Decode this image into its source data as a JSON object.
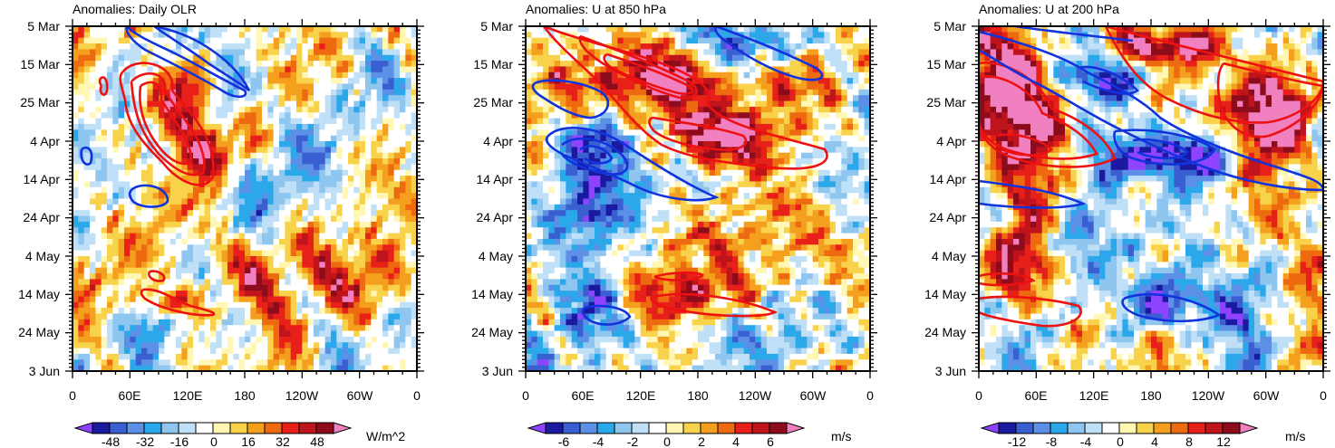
{
  "chart_data": [
    {
      "type": "heatmap",
      "title": "Anomalies: Daily OLR",
      "x_tick_labels": [
        "0",
        "60E",
        "120E",
        "180",
        "120W",
        "60W",
        "0"
      ],
      "y_tick_labels": [
        "5 Mar",
        "15 Mar",
        "25 Mar",
        "4 Apr",
        "14 Apr",
        "24 Apr",
        "4 May",
        "14 May",
        "24 May",
        "3 Jun"
      ],
      "colorbar": {
        "labels": [
          "-48",
          "-32",
          "-16",
          "0",
          "16",
          "32",
          "48"
        ],
        "units": "W/m^2",
        "range": [
          -60,
          60
        ]
      },
      "seed": 11
    },
    {
      "type": "heatmap",
      "title": "Anomalies: U at 850 hPa",
      "x_tick_labels": [
        "0",
        "60E",
        "120E",
        "180",
        "120W",
        "60W",
        "0"
      ],
      "y_tick_labels": [
        "5 Mar",
        "15 Mar",
        "25 Mar",
        "4 Apr",
        "14 Apr",
        "24 Apr",
        "4 May",
        "14 May",
        "24 May",
        "3 Jun"
      ],
      "colorbar": {
        "labels": [
          "-6",
          "-4",
          "-2",
          "0",
          "2",
          "4",
          "6"
        ],
        "units": "m/s",
        "range": [
          -7.5,
          7.5
        ]
      },
      "seed": 23
    },
    {
      "type": "heatmap",
      "title": "Anomalies: U at 200 hPa",
      "x_tick_labels": [
        "0",
        "60E",
        "120E",
        "180",
        "120W",
        "60W",
        "0"
      ],
      "y_tick_labels": [
        "5 Mar",
        "15 Mar",
        "25 Mar",
        "4 Apr",
        "14 Apr",
        "24 Apr",
        "4 May",
        "14 May",
        "24 May",
        "3 Jun"
      ],
      "colorbar": {
        "labels": [
          "-12",
          "-8",
          "-4",
          "0",
          "4",
          "8",
          "12"
        ],
        "units": "m/s",
        "range": [
          -15,
          15
        ]
      },
      "seed": 37
    }
  ],
  "colors": {
    "palette": [
      "#8e44ff",
      "#1a1aa0",
      "#3a5fd0",
      "#5c8fe6",
      "#2ba8ea",
      "#8ec6ef",
      "#bfe0f6",
      "#ffffff",
      "#fff7b3",
      "#f8d24a",
      "#f59f1e",
      "#ee6a10",
      "#e8201a",
      "#c0141c",
      "#8c0c1c",
      "#f080c0"
    ],
    "contour_positive": "#ee1111",
    "contour_negative": "#1133dd"
  }
}
